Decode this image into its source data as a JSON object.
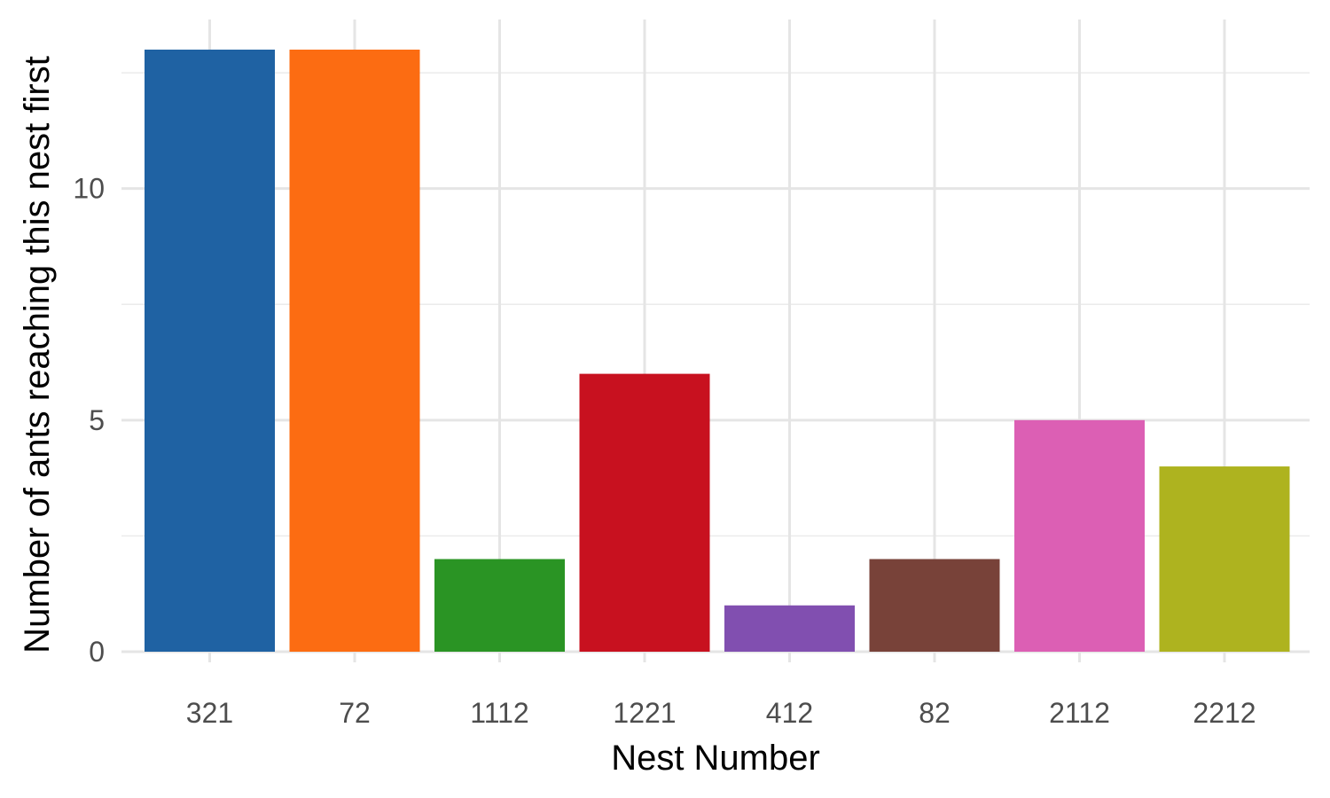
{
  "chart_data": {
    "type": "bar",
    "title": "",
    "xlabel": "Nest Number",
    "ylabel": "Number of ants reaching this nest first",
    "categories": [
      "321",
      "72",
      "1112",
      "1221",
      "412",
      "82",
      "2112",
      "2212"
    ],
    "values": [
      13,
      13,
      2,
      6,
      1,
      2,
      5,
      4
    ],
    "colors": [
      "#1f62a3",
      "#fc6c12",
      "#2a9424",
      "#c8111f",
      "#814fb0",
      "#784239",
      "#dc5fb4",
      "#aeb31f"
    ],
    "ylim": [
      0,
      13.65
    ],
    "yticks": [
      0,
      5,
      10
    ],
    "y_minor_ticks": [
      2.5,
      7.5,
      12.5
    ],
    "grid": true,
    "legend": "none"
  }
}
